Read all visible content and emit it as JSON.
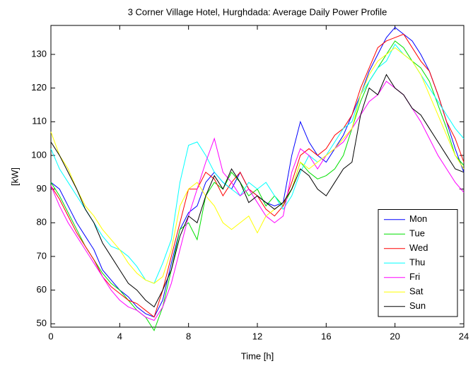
{
  "chart_data": {
    "type": "line",
    "title": "3 Corner Village Hotel, Hurghdada: Average Daily Power Profile",
    "x_label": "Time [h]",
    "y_label": "[kW]",
    "x": [
      0,
      0.5,
      1,
      1.5,
      2,
      2.5,
      3,
      3.5,
      4,
      4.5,
      5,
      5.5,
      6,
      6.5,
      7,
      7.5,
      8,
      8.5,
      9,
      9.5,
      10,
      10.5,
      11,
      11.5,
      12,
      12.5,
      13,
      13.5,
      14,
      14.5,
      15,
      15.5,
      16,
      16.5,
      17,
      17.5,
      18,
      18.5,
      19,
      19.5,
      20,
      20.5,
      21,
      21.5,
      22,
      22.5,
      23,
      23.5,
      24
    ],
    "xlim": [
      0,
      24
    ],
    "xticks": [
      0,
      4,
      8,
      12,
      16,
      20,
      24
    ],
    "ylim": [
      49,
      138.6
    ],
    "yticks": [
      50,
      60,
      70,
      80,
      90,
      100,
      110,
      120,
      130
    ],
    "grid": false,
    "legend": "lower right",
    "series": [
      {
        "name": "Mon",
        "color": "#0000ff",
        "values": [
          92,
          90,
          85,
          80,
          76,
          72,
          66,
          63,
          60,
          58,
          55,
          53,
          52,
          57,
          68,
          78,
          83,
          85,
          92,
          95,
          92,
          90,
          95,
          90,
          88,
          86,
          85,
          86,
          100,
          110,
          104,
          100,
          98,
          102,
          106,
          112,
          118,
          125,
          130,
          135,
          138,
          136,
          134,
          130,
          125,
          118,
          110,
          102,
          95
        ]
      },
      {
        "name": "Tue",
        "color": "#00e000",
        "values": [
          92,
          88,
          83,
          78,
          73,
          69,
          65,
          62,
          60,
          57,
          54,
          52,
          48,
          55,
          66,
          78,
          80,
          75,
          88,
          92,
          90,
          95,
          92,
          88,
          90,
          85,
          88,
          85,
          90,
          98,
          95,
          93,
          94,
          96,
          100,
          108,
          116,
          122,
          126,
          130,
          134,
          132,
          128,
          126,
          122,
          115,
          108,
          100,
          97
        ]
      },
      {
        "name": "Wed",
        "color": "#ff0000",
        "values": [
          91,
          87,
          82,
          77,
          73,
          69,
          64,
          61,
          59,
          57,
          56,
          54,
          52,
          60,
          70,
          80,
          90,
          90,
          95,
          93,
          88,
          92,
          95,
          90,
          88,
          84,
          82,
          85,
          92,
          100,
          102,
          100,
          102,
          106,
          108,
          112,
          120,
          126,
          132,
          134,
          135,
          136,
          132,
          128,
          125,
          118,
          110,
          105,
          98
        ]
      },
      {
        "name": "Thu",
        "color": "#00ffff",
        "values": [
          102,
          96,
          92,
          88,
          84,
          80,
          76,
          73,
          72,
          70,
          67,
          63,
          62,
          68,
          75,
          92,
          103,
          104,
          100,
          95,
          92,
          90,
          88,
          92,
          90,
          92,
          88,
          84,
          88,
          95,
          100,
          98,
          100,
          104,
          108,
          110,
          118,
          122,
          126,
          128,
          133,
          130,
          128,
          124,
          120,
          116,
          112,
          108,
          105
        ]
      },
      {
        "name": "Fri",
        "color": "#ff00ff",
        "values": [
          91,
          85,
          80,
          76,
          72,
          68,
          64,
          60,
          57,
          55,
          54,
          52,
          51,
          55,
          62,
          72,
          82,
          90,
          98,
          105,
          95,
          92,
          88,
          90,
          86,
          82,
          80,
          82,
          95,
          102,
          100,
          96,
          100,
          102,
          104,
          108,
          112,
          116,
          118,
          122,
          120,
          118,
          114,
          110,
          105,
          100,
          96,
          92,
          89
        ]
      },
      {
        "name": "Sat",
        "color": "#ffff00",
        "values": [
          107,
          100,
          96,
          90,
          85,
          82,
          78,
          75,
          72,
          68,
          65,
          63,
          62,
          64,
          72,
          85,
          90,
          92,
          88,
          85,
          80,
          78,
          80,
          82,
          77,
          82,
          84,
          86,
          90,
          98,
          96,
          98,
          100,
          102,
          105,
          108,
          118,
          124,
          128,
          130,
          132,
          130,
          128,
          124,
          118,
          112,
          106,
          100,
          96
        ]
      },
      {
        "name": "Sun",
        "color": "#000000",
        "values": [
          104,
          100,
          95,
          90,
          84,
          80,
          74,
          70,
          66,
          62,
          60,
          57,
          55,
          60,
          66,
          76,
          82,
          80,
          88,
          94,
          90,
          96,
          92,
          86,
          88,
          86,
          84,
          86,
          90,
          96,
          94,
          90,
          88,
          92,
          96,
          98,
          112,
          120,
          118,
          124,
          120,
          118,
          114,
          112,
          108,
          104,
          100,
          96,
          95
        ]
      }
    ]
  }
}
